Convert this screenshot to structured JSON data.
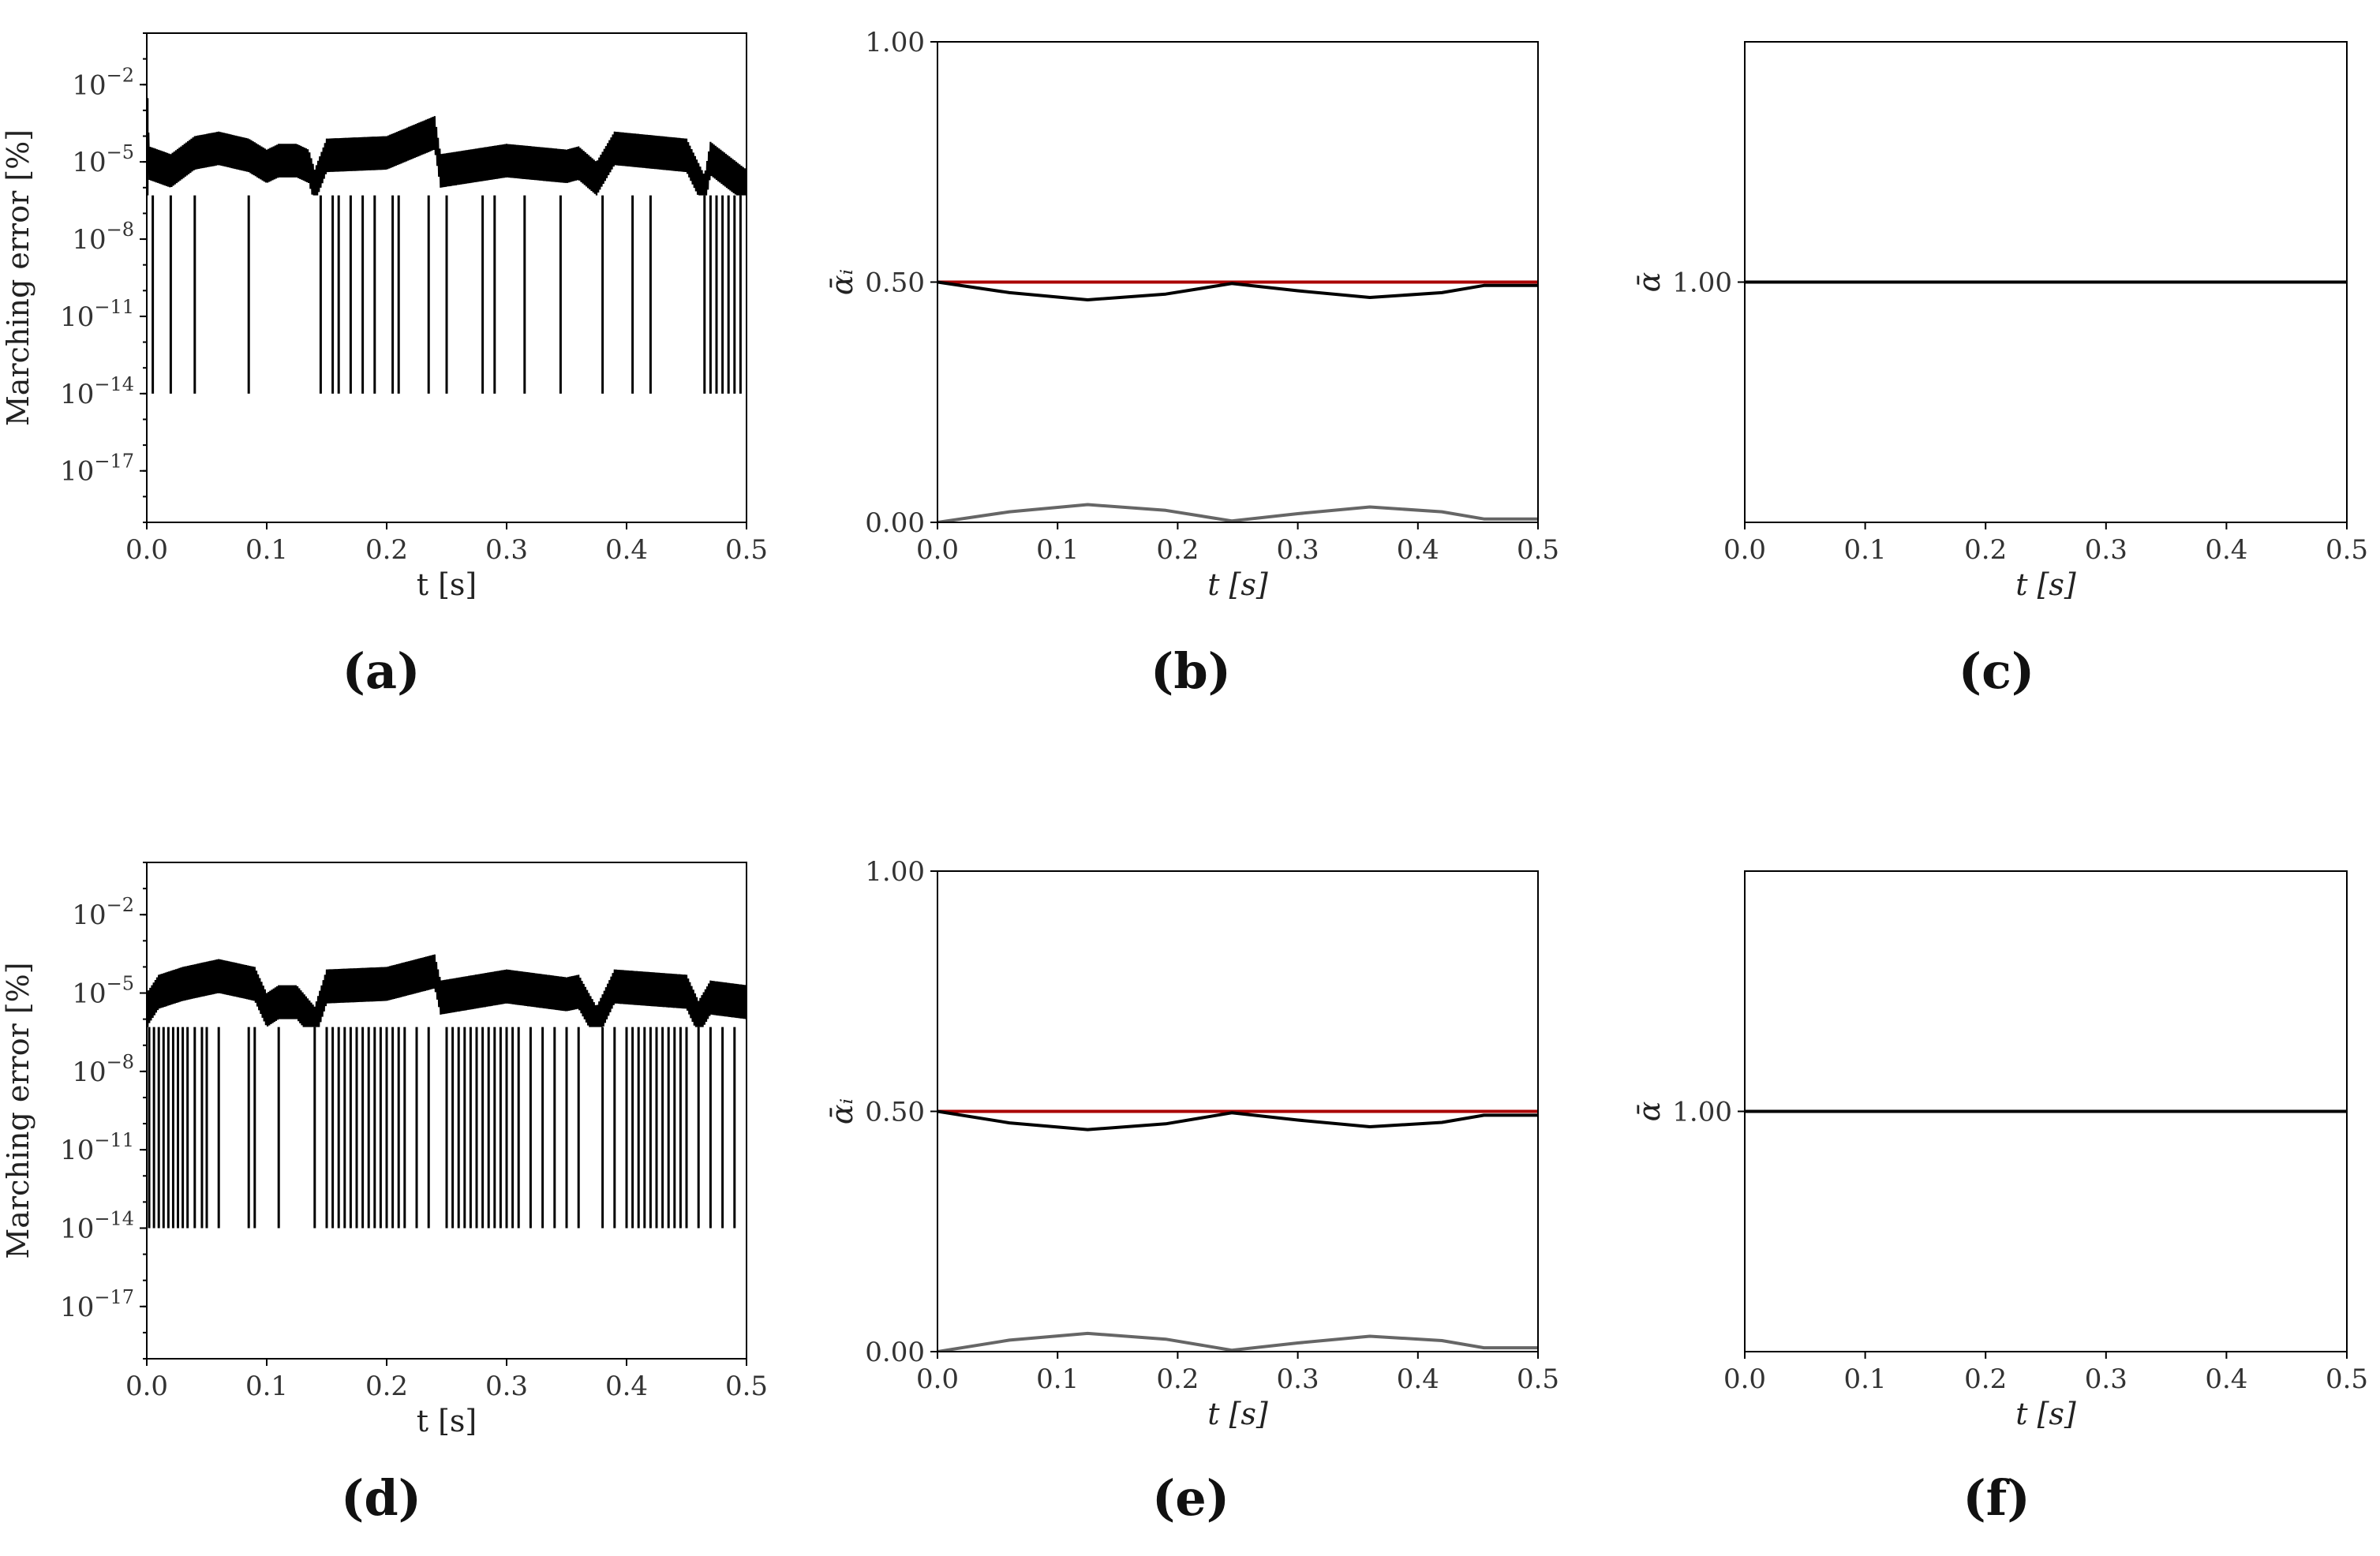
{
  "chart_data": [
    {
      "panel": "(a)",
      "type": "line",
      "xlabel": "t [s]",
      "ylabel": "Marching error [%]",
      "xlim": [
        0,
        0.5
      ],
      "x_ticks": [
        "0.0",
        "0.1",
        "0.2",
        "0.3",
        "0.4",
        "0.5"
      ],
      "y_scale": "log",
      "ylim": [
        1e-19,
        1.0
      ],
      "y_ticks": [
        {
          "base": "10",
          "exp": "−2"
        },
        {
          "base": "10",
          "exp": "−5"
        },
        {
          "base": "10",
          "exp": "−8"
        },
        {
          "base": "10",
          "exp": "−11"
        },
        {
          "base": "10",
          "exp": "−14"
        },
        {
          "base": "10",
          "exp": "−17"
        }
      ],
      "series": [
        {
          "color": "#000000",
          "upper_envelope": [
            [
              0,
              0.003
            ],
            [
              0.002,
              4e-05
            ],
            [
              0.02,
              2e-05
            ],
            [
              0.04,
              0.0001
            ],
            [
              0.06,
              0.00015
            ],
            [
              0.085,
              8e-05
            ],
            [
              0.1,
              3e-05
            ],
            [
              0.11,
              5e-05
            ],
            [
              0.125,
              5e-05
            ],
            [
              0.135,
              3e-05
            ],
            [
              0.14,
              5e-06
            ],
            [
              0.15,
              8e-05
            ],
            [
              0.2,
              0.0001
            ],
            [
              0.24,
              0.0006
            ],
            [
              0.245,
              2e-05
            ],
            [
              0.3,
              5e-05
            ],
            [
              0.35,
              3e-05
            ],
            [
              0.36,
              4e-05
            ],
            [
              0.375,
              1e-05
            ],
            [
              0.39,
              0.00015
            ],
            [
              0.45,
              8e-05
            ],
            [
              0.465,
              3e-06
            ],
            [
              0.47,
              6e-05
            ],
            [
              0.5,
              5e-06
            ]
          ],
          "lower_floor": 5e-07,
          "dropouts_to": 1e-14,
          "dropout_times": [
            0.005,
            0.02,
            0.04,
            0.085,
            0.145,
            0.155,
            0.16,
            0.17,
            0.18,
            0.19,
            0.205,
            0.21,
            0.235,
            0.25,
            0.28,
            0.29,
            0.315,
            0.345,
            0.38,
            0.405,
            0.42,
            0.465,
            0.47,
            0.475,
            0.48,
            0.485,
            0.49,
            0.495
          ]
        }
      ]
    },
    {
      "panel": "(b)",
      "type": "line",
      "xlabel": "t [s]",
      "ylabel": "ᾱᵢ",
      "xlim": [
        0,
        0.5
      ],
      "ylim": [
        0,
        1
      ],
      "x_ticks": [
        "0.0",
        "0.1",
        "0.2",
        "0.3",
        "0.4",
        "0.5"
      ],
      "y_ticks": [
        "0.00",
        "0.50",
        "1.00"
      ],
      "series": [
        {
          "color": "#aa0000",
          "x": [
            0,
            0.5
          ],
          "values": [
            0.5,
            0.5
          ]
        },
        {
          "color": "#000000",
          "x": [
            0,
            0.06,
            0.125,
            0.19,
            0.245,
            0.3,
            0.36,
            0.42,
            0.455,
            0.5
          ],
          "values": [
            0.5,
            0.478,
            0.463,
            0.475,
            0.497,
            0.482,
            0.468,
            0.478,
            0.493,
            0.493
          ]
        },
        {
          "color": "#666666",
          "x": [
            0,
            0.06,
            0.125,
            0.19,
            0.245,
            0.3,
            0.36,
            0.42,
            0.455,
            0.5
          ],
          "values": [
            0.0,
            0.022,
            0.037,
            0.025,
            0.003,
            0.018,
            0.032,
            0.022,
            0.007,
            0.007
          ]
        }
      ]
    },
    {
      "panel": "(c)",
      "type": "line",
      "xlabel": "t [s]",
      "ylabel": "ᾱ",
      "xlim": [
        0,
        0.5
      ],
      "ylim": [
        0,
        2
      ],
      "x_ticks": [
        "0.0",
        "0.1",
        "0.2",
        "0.3",
        "0.4",
        "0.5"
      ],
      "y_ticks": [
        "1.00"
      ],
      "series": [
        {
          "color": "#000000",
          "x": [
            0,
            0.5
          ],
          "values": [
            1.0,
            1.0
          ]
        }
      ]
    },
    {
      "panel": "(d)",
      "type": "line",
      "xlabel": "t [s]",
      "ylabel": "Marching error [%]",
      "xlim": [
        0,
        0.5
      ],
      "x_ticks": [
        "0.0",
        "0.1",
        "0.2",
        "0.3",
        "0.4",
        "0.5"
      ],
      "y_scale": "log",
      "ylim": [
        1e-19,
        1.0
      ],
      "y_ticks": [
        {
          "base": "10",
          "exp": "−2"
        },
        {
          "base": "10",
          "exp": "−5"
        },
        {
          "base": "10",
          "exp": "−8"
        },
        {
          "base": "10",
          "exp": "−11"
        },
        {
          "base": "10",
          "exp": "−14"
        },
        {
          "base": "10",
          "exp": "−17"
        }
      ],
      "series": [
        {
          "color": "#000000",
          "upper_envelope": [
            [
              0,
              1e-05
            ],
            [
              0.01,
              5e-05
            ],
            [
              0.03,
              0.0001
            ],
            [
              0.06,
              0.0002
            ],
            [
              0.09,
              0.0001
            ],
            [
              0.1,
              1e-05
            ],
            [
              0.11,
              2e-05
            ],
            [
              0.125,
              2e-05
            ],
            [
              0.14,
              3e-06
            ],
            [
              0.15,
              8e-05
            ],
            [
              0.2,
              0.0001
            ],
            [
              0.24,
              0.0003
            ],
            [
              0.245,
              3e-05
            ],
            [
              0.3,
              8e-05
            ],
            [
              0.35,
              4e-05
            ],
            [
              0.36,
              5e-05
            ],
            [
              0.375,
              3e-06
            ],
            [
              0.39,
              8e-05
            ],
            [
              0.45,
              5e-05
            ],
            [
              0.46,
              5e-06
            ],
            [
              0.47,
              3e-05
            ],
            [
              0.5,
              2e-05
            ]
          ],
          "lower_floor": 5e-07,
          "dropouts_to": 1e-14,
          "dropout_times": [
            0.002,
            0.006,
            0.01,
            0.014,
            0.018,
            0.022,
            0.026,
            0.03,
            0.034,
            0.04,
            0.046,
            0.05,
            0.06,
            0.085,
            0.09,
            0.11,
            0.14,
            0.15,
            0.155,
            0.16,
            0.165,
            0.17,
            0.175,
            0.18,
            0.185,
            0.19,
            0.195,
            0.2,
            0.205,
            0.21,
            0.215,
            0.225,
            0.235,
            0.25,
            0.255,
            0.26,
            0.265,
            0.27,
            0.275,
            0.28,
            0.285,
            0.29,
            0.295,
            0.3,
            0.305,
            0.31,
            0.32,
            0.33,
            0.34,
            0.35,
            0.36,
            0.38,
            0.39,
            0.4,
            0.405,
            0.41,
            0.415,
            0.42,
            0.425,
            0.43,
            0.435,
            0.44,
            0.445,
            0.45,
            0.46,
            0.47,
            0.48,
            0.49
          ]
        }
      ]
    },
    {
      "panel": "(e)",
      "type": "line",
      "xlabel": "t [s]",
      "ylabel": "ᾱᵢ",
      "xlim": [
        0,
        0.5
      ],
      "ylim": [
        0,
        1
      ],
      "x_ticks": [
        "0.0",
        "0.1",
        "0.2",
        "0.3",
        "0.4",
        "0.5"
      ],
      "y_ticks": [
        "0.00",
        "0.50",
        "1.00"
      ],
      "series": [
        {
          "color": "#aa0000",
          "x": [
            0,
            0.5
          ],
          "values": [
            0.5,
            0.5
          ]
        },
        {
          "color": "#000000",
          "x": [
            0,
            0.06,
            0.125,
            0.19,
            0.245,
            0.3,
            0.36,
            0.42,
            0.455,
            0.5
          ],
          "values": [
            0.5,
            0.476,
            0.462,
            0.474,
            0.497,
            0.482,
            0.468,
            0.477,
            0.492,
            0.492
          ]
        },
        {
          "color": "#666666",
          "x": [
            0,
            0.06,
            0.125,
            0.19,
            0.245,
            0.3,
            0.36,
            0.42,
            0.455,
            0.5
          ],
          "values": [
            0.0,
            0.024,
            0.038,
            0.026,
            0.003,
            0.018,
            0.032,
            0.023,
            0.008,
            0.008
          ]
        }
      ]
    },
    {
      "panel": "(f)",
      "type": "line",
      "xlabel": "t [s]",
      "ylabel": "ᾱ",
      "xlim": [
        0,
        0.5
      ],
      "ylim": [
        0,
        2
      ],
      "x_ticks": [
        "0.0",
        "0.1",
        "0.2",
        "0.3",
        "0.4",
        "0.5"
      ],
      "y_ticks": [
        "1.00"
      ],
      "series": [
        {
          "color": "#000000",
          "x": [
            0,
            0.5
          ],
          "values": [
            1.0,
            1.0
          ]
        }
      ]
    }
  ]
}
